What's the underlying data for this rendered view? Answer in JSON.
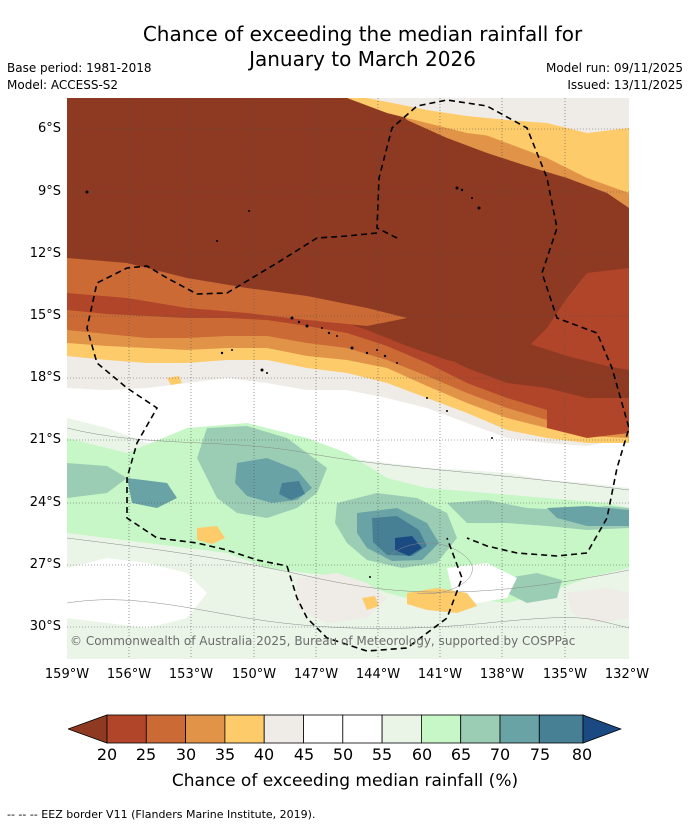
{
  "title": {
    "line1": "Chance of exceeding the median rainfall for",
    "line2": "January to March 2026"
  },
  "meta": {
    "base_period": "Base period: 1981-2018",
    "model": "Model: ACCESS-S2",
    "model_run": "Model run: 09/11/2025",
    "issued": "Issued: 13/11/2025"
  },
  "map": {
    "lat_labels": [
      "6°S",
      "9°S",
      "12°S",
      "15°S",
      "18°S",
      "21°S",
      "24°S",
      "27°S",
      "30°S"
    ],
    "lon_labels": [
      "159°W",
      "156°W",
      "153°W",
      "150°W",
      "147°W",
      "144°W",
      "141°W",
      "138°W",
      "135°W",
      "132°W"
    ],
    "copyright": "© Commonwealth of Australia 2025, Bureau of Meteorology, supported by COSPPac",
    "lat_range": [
      -31.5,
      -4.5
    ],
    "lon_range": [
      -159,
      -132
    ]
  },
  "colorbar": {
    "ticks": [
      "20",
      "25",
      "30",
      "35",
      "40",
      "45",
      "50",
      "55",
      "60",
      "65",
      "70",
      "75",
      "80"
    ],
    "label": "Chance of exceeding median rainfall (%)",
    "colors": {
      "below_20": "#8e3a22",
      "b20_25": "#b0452a",
      "b25_30": "#cc6a35",
      "b30_35": "#e19448",
      "b35_40": "#fecb6a",
      "b40_45": "#efebe6",
      "b45_50": "#ffffff",
      "b50_55": "#ffffff",
      "b55_60": "#eaf5e8",
      "b60_65": "#c7f7c6",
      "b65_70": "#9bcdb5",
      "b70_75": "#6aa3a5",
      "b75_80": "#477f95",
      "above_80": "#1b4a83"
    }
  },
  "footnote": "--  --  -- EEZ border V11 (Flanders Marine Institute, 2019)."
}
